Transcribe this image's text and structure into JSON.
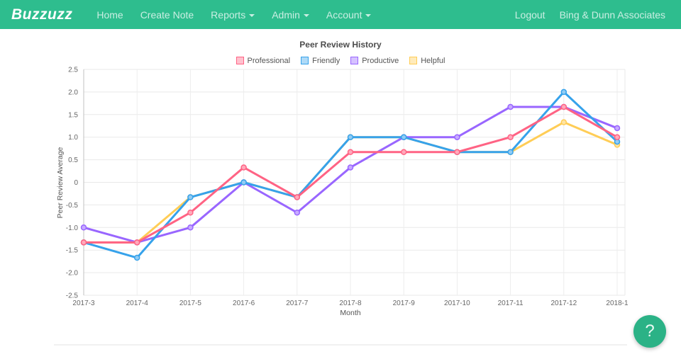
{
  "navbar": {
    "brand": "Buzzuzz",
    "bg_color": "#2ebd8e",
    "items": [
      {
        "label": "Home",
        "dropdown": false
      },
      {
        "label": "Create Note",
        "dropdown": false
      },
      {
        "label": "Reports",
        "dropdown": true
      },
      {
        "label": "Admin",
        "dropdown": true
      },
      {
        "label": "Account",
        "dropdown": true
      }
    ],
    "right_items": [
      {
        "label": "Logout"
      },
      {
        "label": "Bing & Dunn Associates"
      }
    ]
  },
  "chart_data": {
    "type": "line",
    "title": "Peer Review History",
    "xlabel": "Month",
    "ylabel": "Peer Review Average",
    "legend_position": "top",
    "grid": true,
    "categories": [
      "2017-3",
      "2017-4",
      "2017-5",
      "2017-6",
      "2017-7",
      "2017-8",
      "2017-9",
      "2017-10",
      "2017-11",
      "2017-12",
      "2018-1"
    ],
    "ylim": [
      -2.5,
      2.5
    ],
    "ytick_step": 0.5,
    "ytick_labels": [
      "2.5",
      "2.0",
      "1.5",
      "1.0",
      "0.5",
      "0",
      "-0.5",
      "-1.0",
      "-1.5",
      "-2.0",
      "-2.5"
    ],
    "series": [
      {
        "name": "Professional",
        "color": "#ff6384",
        "values": [
          -1.33,
          -1.33,
          -0.67,
          0.33,
          -0.33,
          0.67,
          0.67,
          0.67,
          1.0,
          1.67,
          1.0
        ]
      },
      {
        "name": "Friendly",
        "color": "#36a2eb",
        "values": [
          -1.33,
          -1.67,
          -0.33,
          0.0,
          -0.33,
          1.0,
          1.0,
          0.67,
          0.67,
          2.0,
          0.9
        ]
      },
      {
        "name": "Productive",
        "color": "#9966ff",
        "values": [
          -1.0,
          -1.33,
          -1.0,
          0.0,
          -0.67,
          0.33,
          1.0,
          1.0,
          1.67,
          1.67,
          1.2
        ]
      },
      {
        "name": "Helpful",
        "color": "#ffcd56",
        "values": [
          -1.33,
          -1.33,
          -0.33,
          0.0,
          -0.33,
          1.0,
          1.0,
          0.67,
          0.67,
          1.33,
          0.83
        ]
      }
    ]
  },
  "help_button": {
    "label": "?"
  }
}
